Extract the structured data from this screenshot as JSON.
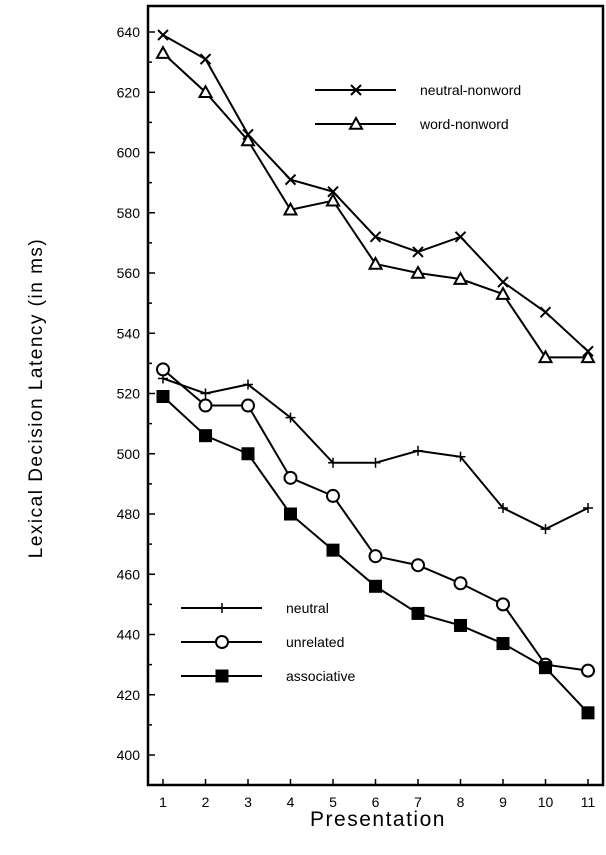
{
  "chart_data": {
    "type": "line",
    "title": "",
    "xlabel": "Presentation",
    "ylabel": "Lexical Decision Latency (in ms)",
    "x": [
      1,
      2,
      3,
      4,
      5,
      6,
      7,
      8,
      9,
      10,
      11
    ],
    "xlim": [
      0.5,
      11.2
    ],
    "ylim": [
      400,
      645
    ],
    "yticks": [
      400,
      420,
      440,
      460,
      480,
      500,
      520,
      540,
      560,
      580,
      600,
      620,
      640
    ],
    "grid": false,
    "series": [
      {
        "name": "neutral-nonword",
        "marker": "x",
        "legend_group": "top",
        "values": [
          639,
          631,
          606,
          591,
          587,
          572,
          567,
          572,
          557,
          547,
          534
        ]
      },
      {
        "name": "word-nonword",
        "marker": "open-triangle",
        "legend_group": "top",
        "values": [
          633,
          620,
          604,
          581,
          584,
          563,
          560,
          558,
          553,
          532,
          532
        ]
      },
      {
        "name": "neutral",
        "marker": "plus",
        "legend_group": "bottom",
        "values": [
          525,
          520,
          523,
          512,
          497,
          497,
          501,
          499,
          482,
          475,
          482
        ]
      },
      {
        "name": "unrelated",
        "marker": "open-circle",
        "legend_group": "bottom",
        "values": [
          528,
          516,
          516,
          492,
          486,
          466,
          463,
          457,
          450,
          430,
          428
        ]
      },
      {
        "name": "associative",
        "marker": "filled-square",
        "legend_group": "bottom",
        "values": [
          519,
          506,
          500,
          480,
          468,
          456,
          447,
          443,
          437,
          429,
          414
        ]
      }
    ]
  }
}
